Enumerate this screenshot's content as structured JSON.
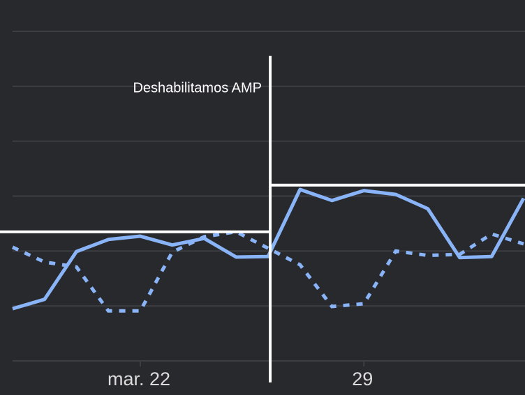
{
  "chart_data": {
    "type": "line",
    "categories": [
      null,
      null,
      null,
      null,
      "mar. 22",
      null,
      null,
      null,
      null,
      null,
      null,
      "29",
      null,
      null,
      null,
      null,
      null
    ],
    "series": [
      {
        "color": "#8ab4f8",
        "style": "solid",
        "values": [
          0.95,
          1.12,
          1.99,
          2.21,
          2.27,
          2.11,
          2.23,
          1.89,
          1.9,
          3.12,
          2.92,
          3.1,
          3.03,
          2.77,
          1.88,
          1.9,
          2.96
        ]
      },
      {
        "color": "#8ab4f8",
        "style": "dotted",
        "values": [
          2.07,
          1.8,
          1.71,
          0.91,
          0.91,
          1.98,
          2.26,
          2.35,
          2.05,
          1.75,
          0.99,
          1.04,
          2.0,
          1.92,
          1.94,
          2.31,
          2.13
        ]
      }
    ],
    "ylim": [
      0,
      6
    ],
    "yticks": [
      0,
      1,
      2,
      3,
      4,
      5,
      6
    ],
    "grid": true,
    "annotation": {
      "label": "Deshabilitamos AMP",
      "x": 8
    },
    "reference_lines": [
      {
        "value": 2.35,
        "from": 0,
        "to": 8
      },
      {
        "value": 3.2,
        "from": 8,
        "to": 16
      }
    ]
  }
}
